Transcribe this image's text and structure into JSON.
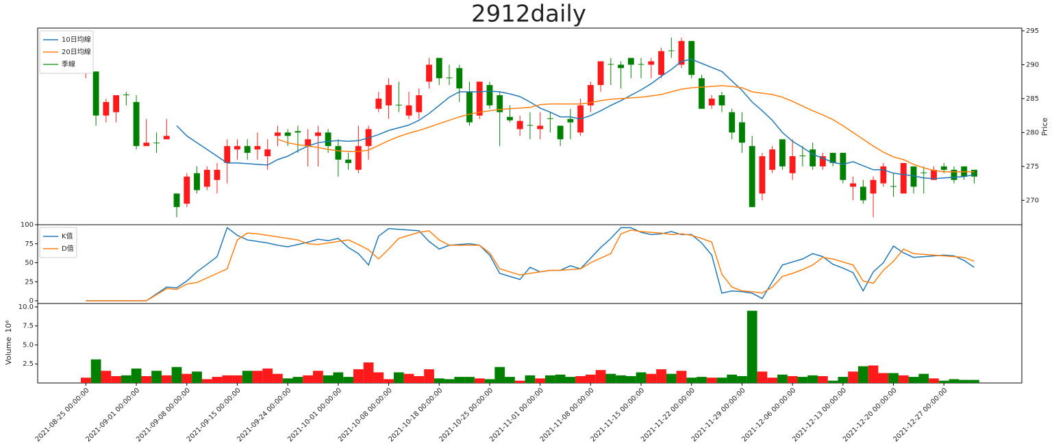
{
  "chart_data": [
    {
      "type": "candlestick",
      "title": "2912daily",
      "ylabel": "Price",
      "yaxis_side": "right",
      "legend": "upper left",
      "up_color": "#fe1a1a",
      "down_color": "#008000",
      "ylim": [
        266.4,
        295.4
      ],
      "yticks": [
        270,
        275,
        280,
        285,
        290,
        295
      ],
      "open": [
        289.5,
        289,
        282.5,
        283,
        285.6,
        284.5,
        278,
        278.5,
        279,
        271,
        269.5,
        274,
        272,
        273,
        275.5,
        277.5,
        278,
        277.5,
        276.5,
        279.5,
        280,
        280.2,
        278,
        279.5,
        280,
        278,
        276,
        274.5,
        278,
        283.5,
        284,
        284.1,
        282.5,
        283,
        287.5,
        291,
        288.1,
        289.5,
        286,
        282.5,
        287,
        285.5,
        282.3,
        280.5,
        281.1,
        280.5,
        282.1,
        281,
        282,
        280,
        284,
        287,
        290.1,
        290,
        291,
        290.1,
        290,
        288.5,
        292.1,
        290,
        293.5,
        288,
        284,
        285.5,
        283,
        281.5,
        278,
        271,
        274.5,
        279,
        274,
        276.6,
        277.5,
        275,
        277,
        277,
        272,
        272,
        271,
        272.5,
        272.1,
        271,
        275,
        274.1,
        273,
        275,
        274.5,
        275,
        274.5
      ],
      "high": [
        290.5,
        289,
        285,
        285.5,
        286,
        285.5,
        282,
        280,
        282,
        271,
        274,
        275,
        275,
        275.5,
        279,
        279,
        279,
        280,
        279,
        281,
        280.5,
        281,
        280.5,
        281,
        280.5,
        279,
        277,
        281,
        281,
        286,
        288,
        287.5,
        286,
        286.5,
        291,
        291,
        290,
        290,
        287.5,
        287.5,
        287.5,
        286,
        284,
        282.5,
        283,
        283,
        283,
        281,
        283.5,
        285,
        287.5,
        290.5,
        291,
        290.5,
        291,
        291,
        291,
        292.5,
        294,
        294,
        293.5,
        288.5,
        285.5,
        286,
        283.5,
        283,
        279.5,
        277,
        278,
        279,
        279,
        278,
        278.5,
        277,
        277,
        277,
        273.5,
        273,
        273.5,
        275.5,
        274,
        275.5,
        275,
        275,
        275,
        275.5,
        275,
        275,
        274.5
      ],
      "low": [
        288,
        281,
        281.5,
        281.5,
        284,
        277.5,
        278,
        277,
        279,
        267.5,
        269,
        271,
        271.5,
        271,
        272.5,
        276,
        276,
        276,
        274.5,
        278,
        278,
        277,
        275,
        275,
        277,
        273.5,
        274.5,
        274,
        276,
        283,
        282,
        283,
        282,
        282,
        286.5,
        287,
        287,
        284.5,
        281,
        282,
        283.5,
        278,
        281.5,
        279.5,
        279,
        279,
        280,
        278,
        279,
        279.5,
        283,
        286,
        287,
        286.5,
        288,
        288,
        288,
        288,
        291,
        289.5,
        288,
        283.5,
        283.5,
        283,
        279,
        277,
        269,
        270,
        274,
        274.5,
        273,
        275,
        274.5,
        274.5,
        275,
        272.5,
        270,
        269.5,
        267.5,
        272,
        270.5,
        271,
        271,
        271,
        273,
        274,
        272.5,
        273,
        272.5
      ],
      "close": [
        290,
        282.5,
        284.5,
        285.5,
        285.5,
        278,
        278.5,
        278.4,
        279.5,
        269,
        273.5,
        271.5,
        274.5,
        274.5,
        278,
        278,
        277,
        278,
        277.5,
        280,
        279.5,
        280,
        279,
        280,
        278,
        276,
        275.5,
        278,
        280.5,
        285,
        287,
        284,
        284,
        285.5,
        290,
        288,
        288,
        286.5,
        281.5,
        287.5,
        284,
        283,
        281.8,
        281.7,
        281,
        281,
        282,
        279,
        281.5,
        284,
        287,
        290.5,
        290,
        289.5,
        290,
        290,
        290.5,
        292,
        292,
        293.5,
        288.5,
        283.5,
        285,
        284,
        280,
        278.5,
        269,
        276.5,
        277.5,
        275,
        276.5,
        276.5,
        275,
        276.5,
        275.5,
        273,
        272.5,
        270,
        273,
        275,
        272,
        275.5,
        272,
        274,
        274.5,
        274.5,
        273,
        273.5,
        273.5
      ],
      "series": [
        {
          "name": "10日均線",
          "color": "#1f77b4",
          "values": [
            null,
            null,
            null,
            null,
            null,
            null,
            null,
            null,
            null,
            281,
            279.5,
            278.5,
            277.5,
            276.5,
            275.5,
            275.5,
            275.4,
            275.3,
            275.2,
            276,
            276.5,
            277.3,
            278,
            278.5,
            278.7,
            278.8,
            278.7,
            278.8,
            279.2,
            279.7,
            280.3,
            280.7,
            281.1,
            281.8,
            282.8,
            284,
            285.2,
            286,
            286,
            286,
            286.1,
            286,
            285.7,
            285.3,
            284.5,
            283.6,
            283,
            282.3,
            282.3,
            282,
            282.5,
            283.2,
            284,
            284.7,
            285.5,
            286.3,
            287.2,
            288.3,
            289.3,
            290.5,
            290.8,
            290.2,
            289.6,
            289,
            287.6,
            286.2,
            284.5,
            283.2,
            281.8,
            280,
            278.7,
            277.8,
            276.8,
            276.2,
            275.6,
            275.3,
            275.7,
            275.1,
            274.5,
            274.5,
            274,
            273.8,
            273.6,
            273.3,
            273.2,
            273.3,
            273.4,
            273.5,
            273.8
          ]
        },
        {
          "name": "20日均線",
          "color": "#ff7f0e",
          "values": [
            null,
            null,
            null,
            null,
            null,
            null,
            null,
            null,
            null,
            null,
            null,
            null,
            null,
            null,
            null,
            null,
            null,
            null,
            null,
            279,
            278.5,
            278.2,
            278,
            277.8,
            277.5,
            277.3,
            277.2,
            277.2,
            277.4,
            278.1,
            278.8,
            279.4,
            279.9,
            280.3,
            280.8,
            281.3,
            281.8,
            282.3,
            282.7,
            283,
            283.2,
            283.4,
            283.5,
            283.6,
            283.7,
            284.1,
            284.2,
            284.2,
            284.2,
            284.2,
            284.4,
            284.7,
            284.9,
            285,
            285.1,
            285.2,
            285.4,
            285.6,
            286,
            286.4,
            286.6,
            286.7,
            286.8,
            286.9,
            286.8,
            286.6,
            286,
            285.8,
            285.6,
            285.2,
            284.6,
            283.9,
            283.2,
            282.6,
            281.9,
            281,
            280,
            279,
            278,
            277.1,
            276.4,
            276,
            275.3,
            274.8,
            274.4,
            274.2,
            274.2,
            274.2,
            274.2
          ]
        },
        {
          "name": "季線",
          "color": "#2ca02c",
          "values": [
            null,
            null,
            null,
            null,
            null,
            null,
            null,
            null,
            null,
            null,
            null,
            null,
            null,
            null,
            null,
            null,
            null,
            null,
            null,
            null,
            null,
            null,
            null,
            null,
            null,
            null,
            null,
            null,
            null,
            null,
            null,
            null,
            null,
            null,
            null,
            null,
            null,
            null,
            null,
            null,
            null,
            null,
            null,
            null,
            null,
            null,
            null,
            null,
            null,
            null,
            null,
            null,
            null,
            null,
            null,
            null,
            null,
            null,
            null,
            null,
            null,
            null,
            null,
            null,
            null,
            null,
            null,
            null,
            null,
            null,
            null,
            null,
            null,
            null,
            null,
            null,
            null,
            null,
            null,
            null,
            null,
            null,
            null,
            null,
            null,
            null,
            null,
            null,
            null
          ]
        }
      ]
    },
    {
      "type": "line",
      "legend": "upper left",
      "ylim": [
        -3.6,
        100
      ],
      "yticks": [
        0,
        25,
        50,
        75,
        100
      ],
      "series": [
        {
          "name": "K值",
          "color": "#1f77b4",
          "values": [
            0,
            0,
            0,
            0,
            0,
            0,
            0,
            9,
            18,
            17,
            26,
            38,
            48,
            58,
            96,
            86,
            80,
            78,
            76,
            73,
            71,
            74,
            77,
            81,
            79,
            82,
            70,
            62,
            47,
            85,
            95,
            94,
            93,
            92,
            78,
            68,
            73,
            74,
            75,
            73,
            60,
            36,
            32,
            28,
            44,
            38,
            40,
            40,
            46,
            42,
            56,
            70,
            82,
            96,
            96,
            90,
            87,
            88,
            91,
            87,
            87,
            76,
            60,
            10,
            13,
            12,
            10,
            3,
            25,
            47,
            51,
            55,
            62,
            58,
            48,
            43,
            37,
            13,
            38,
            50,
            72,
            63,
            57,
            58,
            59,
            60,
            59,
            53,
            44
          ]
        },
        {
          "name": "D值",
          "color": "#ff7f0e",
          "values": [
            0,
            0,
            0,
            0,
            0,
            0,
            0,
            8,
            16,
            15,
            22,
            24,
            30,
            36,
            42,
            80,
            89,
            88,
            86,
            84,
            82,
            80,
            75,
            74,
            76,
            78,
            80,
            74,
            67,
            55,
            68,
            82,
            86,
            90,
            92,
            80,
            73,
            73,
            73,
            73,
            63,
            42,
            38,
            34,
            36,
            38,
            40,
            40,
            41,
            42,
            50,
            56,
            62,
            88,
            93,
            91,
            90,
            89,
            87,
            88,
            86,
            82,
            77,
            35,
            18,
            13,
            12,
            10,
            18,
            32,
            36,
            41,
            47,
            57,
            55,
            51,
            47,
            26,
            23,
            40,
            52,
            68,
            62,
            61,
            60,
            59,
            58,
            57,
            52
          ]
        }
      ]
    },
    {
      "type": "bar",
      "ylabel": "Volume",
      "offset_text": "10⁶",
      "ylim": [
        0,
        10.45
      ],
      "yticks": [
        2.5,
        {
          "value": 5,
          "label": "5.0"
        },
        7.5,
        {
          "value": 10,
          "label": "10.0"
        }
      ],
      "categories": [
        "2021-08-25 00:00:00",
        null,
        null,
        null,
        null,
        "2021-09-01 00:00:00",
        null,
        null,
        null,
        null,
        "2021-09-08 00:00:00",
        null,
        null,
        null,
        null,
        "2021-09-15 00:00:00",
        null,
        null,
        null,
        null,
        "2021-09-24 00:00:00",
        null,
        null,
        null,
        null,
        "2021-10-01 00:00:00",
        null,
        null,
        null,
        null,
        "2021-10-08 00:00:00",
        null,
        null,
        null,
        null,
        "2021-10-18 00:00:00",
        null,
        null,
        null,
        null,
        "2021-10-25 00:00:00",
        null,
        null,
        null,
        null,
        "2021-11-01 00:00:00",
        null,
        null,
        null,
        null,
        "2021-11-08 00:00:00",
        null,
        null,
        null,
        null,
        "2021-11-15 00:00:00",
        null,
        null,
        null,
        null,
        "2021-11-22 00:00:00",
        null,
        null,
        null,
        null,
        "2021-11-29 00:00:00",
        null,
        null,
        null,
        null,
        "2021-12-06 00:00:00",
        null,
        null,
        null,
        null,
        "2021-12-13 00:00:00",
        null,
        null,
        null,
        null,
        "2021-12-20 00:00:00",
        null,
        null,
        null,
        null,
        "2021-12-27 00:00:00",
        null,
        null,
        null
      ],
      "values": [
        0.7,
        3.1,
        1.6,
        0.9,
        1.0,
        1.9,
        0.9,
        1.6,
        1.0,
        2.1,
        1.2,
        1.5,
        0.5,
        0.8,
        1.0,
        1.0,
        1.6,
        1.6,
        1.9,
        1.2,
        0.6,
        0.8,
        1.0,
        1.6,
        1.0,
        1.4,
        0.8,
        1.8,
        2.7,
        1.4,
        0.5,
        1.4,
        1.2,
        0.9,
        1.8,
        0.6,
        0.5,
        0.8,
        0.8,
        0.6,
        0.5,
        2.1,
        0.8,
        0.3,
        1.0,
        0.6,
        1.0,
        1.1,
        0.8,
        0.9,
        1.1,
        1.7,
        1.2,
        1.0,
        0.9,
        1.4,
        1.2,
        1.8,
        1.2,
        1.6,
        0.7,
        0.8,
        0.7,
        0.7,
        1.1,
        0.9,
        9.5,
        1.5,
        0.7,
        1.1,
        0.9,
        0.8,
        1.0,
        0.9,
        0.3,
        0.8,
        1.5,
        2.2,
        2.3,
        1.3,
        1.3,
        1.0,
        0.8,
        1.2,
        0.6,
        0.3,
        0.5,
        0.4,
        0.4
      ]
    }
  ]
}
